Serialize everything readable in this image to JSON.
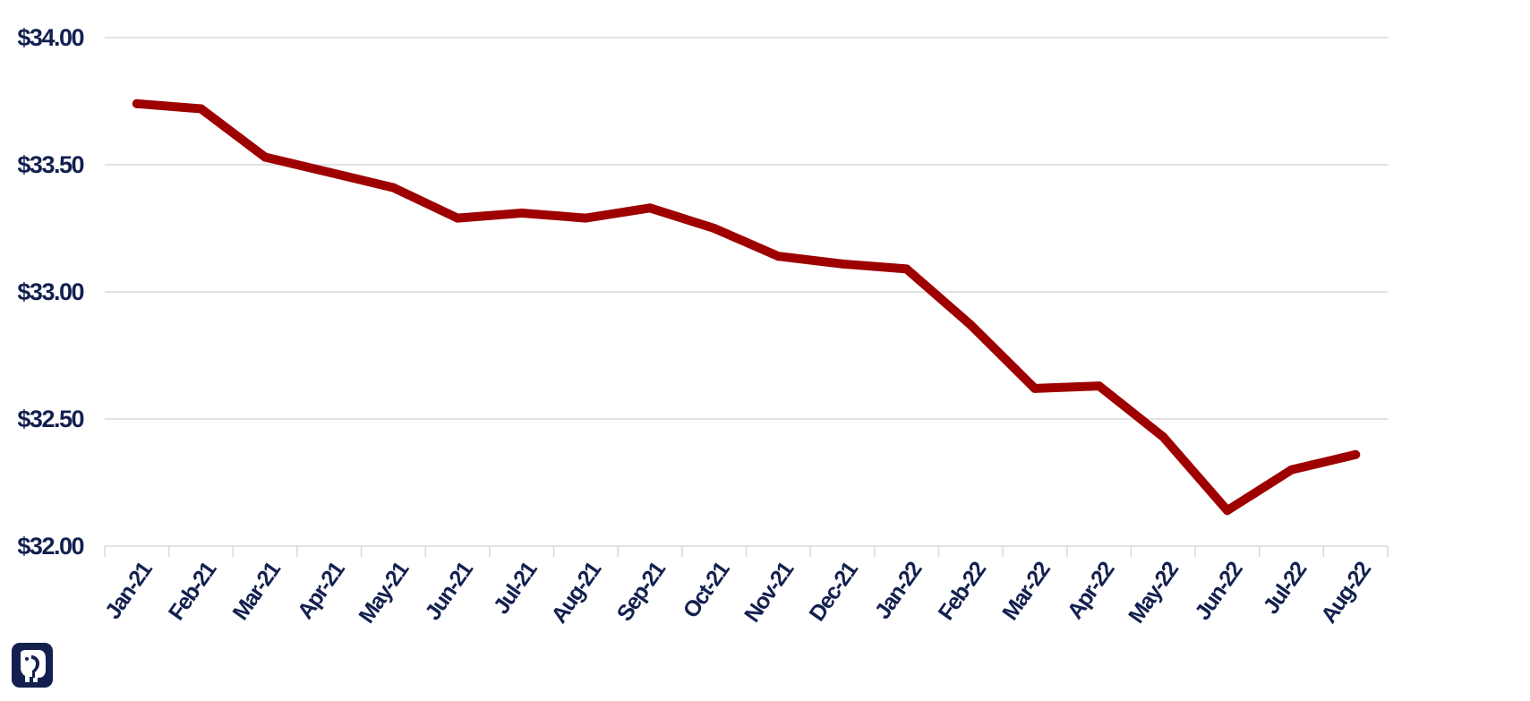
{
  "chart_data": {
    "type": "line",
    "title": "",
    "xlabel": "",
    "ylabel": "",
    "categories": [
      "Jan-21",
      "Feb-21",
      "Mar-21",
      "Apr-21",
      "May-21",
      "Jun-21",
      "Jul-21",
      "Aug-21",
      "Sep-21",
      "Oct-21",
      "Nov-21",
      "Dec-21",
      "Jan-22",
      "Feb-22",
      "Mar-22",
      "Apr-22",
      "May-22",
      "Jun-22",
      "Jul-22",
      "Aug-22"
    ],
    "series": [
      {
        "values": [
          33.74,
          33.72,
          33.53,
          33.47,
          33.41,
          33.29,
          33.31,
          33.29,
          33.33,
          33.25,
          33.14,
          33.11,
          33.09,
          32.87,
          32.62,
          32.63,
          32.43,
          32.14,
          32.3,
          32.36
        ]
      }
    ],
    "ylim": [
      32.0,
      34.0
    ],
    "yticks": [
      34.0,
      33.5,
      33.0,
      32.5,
      32.0
    ],
    "ytick_labels": [
      "$34.00",
      "$33.50",
      "$33.00",
      "$32.50",
      "$32.00"
    ],
    "grid": true,
    "legend": "none"
  },
  "colors": {
    "line": "#9e0000",
    "axis_text": "#13204f",
    "grid": "#d9d9d9",
    "logo": "#13204f"
  },
  "logo": {
    "icon": "elephant-icon"
  }
}
